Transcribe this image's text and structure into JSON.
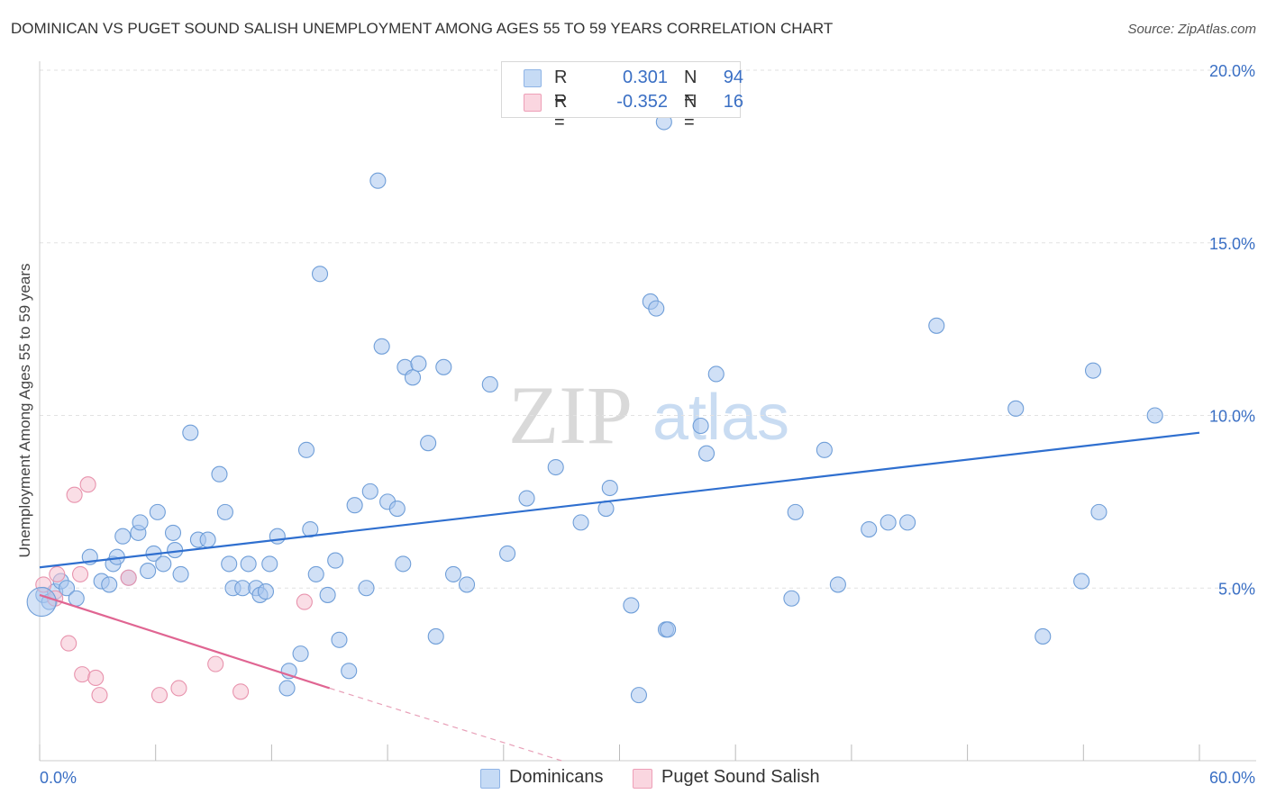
{
  "title": "DOMINICAN VS PUGET SOUND SALISH UNEMPLOYMENT AMONG AGES 55 TO 59 YEARS CORRELATION CHART",
  "source": "Source: ZipAtlas.com",
  "legend_top": {
    "rows": [
      {
        "label": "R =",
        "r": "0.301",
        "n_label": "N =",
        "n": "94",
        "color": "#a9c7ef"
      },
      {
        "label": "R =",
        "r": "-0.352",
        "n_label": "N =",
        "n": "16",
        "color": "#f6c3d1"
      }
    ]
  },
  "legend_bottom": [
    {
      "label": "Dominicans",
      "color": "#a9c7ef"
    },
    {
      "label": "Puget Sound Salish",
      "color": "#f6c3d1"
    }
  ],
  "watermark": {
    "zip": "ZIP",
    "atlas": "atlas"
  },
  "chart_data": {
    "type": "scatter",
    "title": "DOMINICAN VS PUGET SOUND SALISH UNEMPLOYMENT AMONG AGES 55 TO 59 YEARS CORRELATION CHART",
    "xlabel": "",
    "ylabel": "Unemployment Among Ages 55 to 59 years",
    "xlim": [
      0,
      60
    ],
    "ylim": [
      0,
      20
    ],
    "x_tick_labels": [
      "0.0%",
      "60.0%"
    ],
    "y_tick_labels": [
      "5.0%",
      "10.0%",
      "15.0%",
      "20.0%"
    ],
    "y_ticks": [
      5,
      10,
      15,
      20
    ],
    "grid": true,
    "legend_position": "top-center",
    "series": [
      {
        "name": "Dominicans",
        "color": "#a9c7ef",
        "stroke": "#6f9ed8",
        "r": 0.301,
        "n": 94,
        "trend": {
          "x": [
            0,
            60
          ],
          "y": [
            5.6,
            9.5
          ]
        },
        "points": [
          [
            0.2,
            4.8
          ],
          [
            0.5,
            4.6
          ],
          [
            0.8,
            4.9
          ],
          [
            1.1,
            5.2
          ],
          [
            1.4,
            5.0
          ],
          [
            1.9,
            4.7
          ],
          [
            2.6,
            5.9
          ],
          [
            3.2,
            5.2
          ],
          [
            3.6,
            5.1
          ],
          [
            3.8,
            5.7
          ],
          [
            4.0,
            5.9
          ],
          [
            4.3,
            6.5
          ],
          [
            4.6,
            5.3
          ],
          [
            5.1,
            6.6
          ],
          [
            5.2,
            6.9
          ],
          [
            5.6,
            5.5
          ],
          [
            5.9,
            6.0
          ],
          [
            6.1,
            7.2
          ],
          [
            6.4,
            5.7
          ],
          [
            6.9,
            6.6
          ],
          [
            7.0,
            6.1
          ],
          [
            7.3,
            5.4
          ],
          [
            7.8,
            9.5
          ],
          [
            8.2,
            6.4
          ],
          [
            8.7,
            6.4
          ],
          [
            9.3,
            8.3
          ],
          [
            9.6,
            7.2
          ],
          [
            9.8,
            5.7
          ],
          [
            10.0,
            5.0
          ],
          [
            10.5,
            5.0
          ],
          [
            10.8,
            5.7
          ],
          [
            11.2,
            5.0
          ],
          [
            11.4,
            4.8
          ],
          [
            11.7,
            4.9
          ],
          [
            11.9,
            5.7
          ],
          [
            12.3,
            6.5
          ],
          [
            12.8,
            2.1
          ],
          [
            12.9,
            2.6
          ],
          [
            13.5,
            3.1
          ],
          [
            13.8,
            9.0
          ],
          [
            14.0,
            6.7
          ],
          [
            14.3,
            5.4
          ],
          [
            14.5,
            14.1
          ],
          [
            14.9,
            4.8
          ],
          [
            15.3,
            5.8
          ],
          [
            15.5,
            3.5
          ],
          [
            16.0,
            2.6
          ],
          [
            16.3,
            7.4
          ],
          [
            16.9,
            5.0
          ],
          [
            17.1,
            7.8
          ],
          [
            17.5,
            16.8
          ],
          [
            17.7,
            12.0
          ],
          [
            18.0,
            7.5
          ],
          [
            18.5,
            7.3
          ],
          [
            18.8,
            5.7
          ],
          [
            18.9,
            11.4
          ],
          [
            19.3,
            11.1
          ],
          [
            19.6,
            11.5
          ],
          [
            20.1,
            9.2
          ],
          [
            20.5,
            3.6
          ],
          [
            20.9,
            11.4
          ],
          [
            21.4,
            5.4
          ],
          [
            22.1,
            5.1
          ],
          [
            23.3,
            10.9
          ],
          [
            24.2,
            6.0
          ],
          [
            25.2,
            7.6
          ],
          [
            26.7,
            8.5
          ],
          [
            28.0,
            6.9
          ],
          [
            29.3,
            7.3
          ],
          [
            29.5,
            7.9
          ],
          [
            30.6,
            4.5
          ],
          [
            31.0,
            1.9
          ],
          [
            31.6,
            13.3
          ],
          [
            31.9,
            13.1
          ],
          [
            32.3,
            18.5
          ],
          [
            32.4,
            3.8
          ],
          [
            32.5,
            3.8
          ],
          [
            34.2,
            9.7
          ],
          [
            34.5,
            8.9
          ],
          [
            35.0,
            11.2
          ],
          [
            38.9,
            4.7
          ],
          [
            39.1,
            7.2
          ],
          [
            40.6,
            9.0
          ],
          [
            41.3,
            5.1
          ],
          [
            42.9,
            6.7
          ],
          [
            43.9,
            6.9
          ],
          [
            44.9,
            6.9
          ],
          [
            46.4,
            12.6
          ],
          [
            50.5,
            10.2
          ],
          [
            51.9,
            3.6
          ],
          [
            53.9,
            5.2
          ],
          [
            54.5,
            11.3
          ],
          [
            54.8,
            7.2
          ],
          [
            57.7,
            10.0
          ]
        ]
      },
      {
        "name": "Puget Sound Salish",
        "color": "#f6c3d1",
        "stroke": "#e893ad",
        "r": -0.352,
        "n": 16,
        "trend": {
          "x": [
            0,
            15
          ],
          "y": [
            4.8,
            2.1
          ]
        },
        "trend_dashed": {
          "x": [
            15,
            27
          ],
          "y": [
            2.1,
            0.0
          ]
        },
        "points": [
          [
            0.2,
            5.1
          ],
          [
            0.8,
            4.7
          ],
          [
            0.9,
            5.4
          ],
          [
            1.5,
            3.4
          ],
          [
            1.8,
            7.7
          ],
          [
            2.1,
            5.4
          ],
          [
            2.2,
            2.5
          ],
          [
            2.5,
            8.0
          ],
          [
            2.9,
            2.4
          ],
          [
            3.1,
            1.9
          ],
          [
            4.6,
            5.3
          ],
          [
            6.2,
            1.9
          ],
          [
            7.2,
            2.1
          ],
          [
            9.1,
            2.8
          ],
          [
            10.4,
            2.0
          ],
          [
            13.7,
            4.6
          ]
        ]
      }
    ]
  }
}
